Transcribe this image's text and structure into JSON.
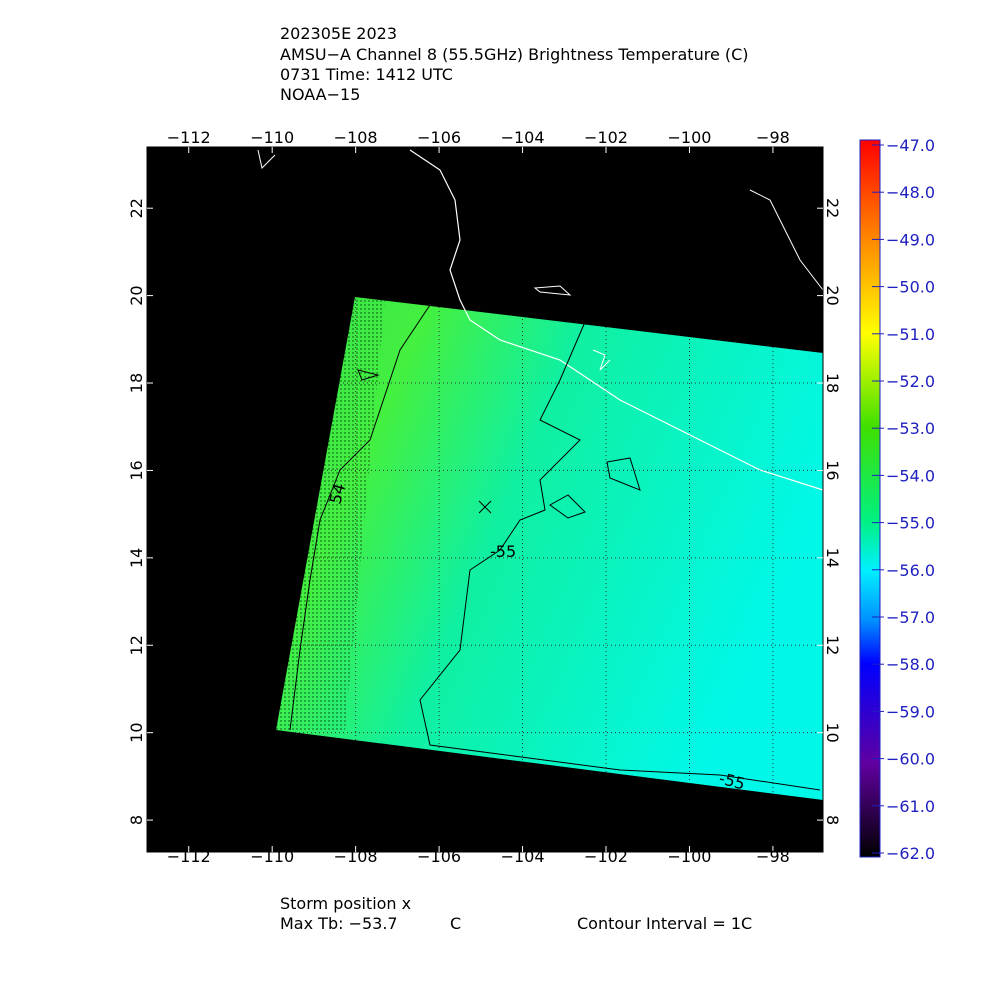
{
  "header": {
    "lines": [
      "202305E 2023",
      "AMSU−A Channel 8 (55.5GHz) Brightness Temperature (C)",
      "0731 Time: 1412 UTC",
      "NOAA−15"
    ]
  },
  "map": {
    "lonlim": [
      -113.0,
      -96.8
    ],
    "latlim": [
      7.27,
      23.4
    ],
    "lon_ticks": [
      {
        "value": -112,
        "label": "−112"
      },
      {
        "value": -110,
        "label": "−110"
      },
      {
        "value": -108,
        "label": "−108"
      },
      {
        "value": -106,
        "label": "−106"
      },
      {
        "value": -104,
        "label": "−104"
      },
      {
        "value": -102,
        "label": "−102"
      },
      {
        "value": -100,
        "label": "−100"
      },
      {
        "value": -98,
        "label": "−98"
      }
    ],
    "lat_ticks": [
      8,
      10,
      12,
      14,
      16,
      18,
      20,
      22
    ],
    "contour_labels": [
      "-55",
      "54",
      "-55"
    ]
  },
  "colorbar": {
    "lim": [
      -62,
      -47
    ],
    "ticks": [
      {
        "value": -47,
        "label": "−47.0"
      },
      {
        "value": -48,
        "label": "−48.0"
      },
      {
        "value": -49,
        "label": "−49.0"
      },
      {
        "value": -50,
        "label": "−50.0"
      },
      {
        "value": -51,
        "label": "−51.0"
      },
      {
        "value": -52,
        "label": "−52.0"
      },
      {
        "value": -53,
        "label": "−53.0"
      },
      {
        "value": -54,
        "label": "−54.0"
      },
      {
        "value": -55,
        "label": "−55.0"
      },
      {
        "value": -56,
        "label": "−56.0"
      },
      {
        "value": -57,
        "label": "−57.0"
      },
      {
        "value": -58,
        "label": "−58.0"
      },
      {
        "value": -59,
        "label": "−59.0"
      },
      {
        "value": -60,
        "label": "−60.0"
      },
      {
        "value": -61,
        "label": "−61.0"
      },
      {
        "value": -62,
        "label": "−62.0"
      }
    ]
  },
  "footer": {
    "storm": "Storm position x",
    "max_tb": "Max Tb: −53.7",
    "unit": "C",
    "contour": "Contour Interval = 1C"
  }
}
